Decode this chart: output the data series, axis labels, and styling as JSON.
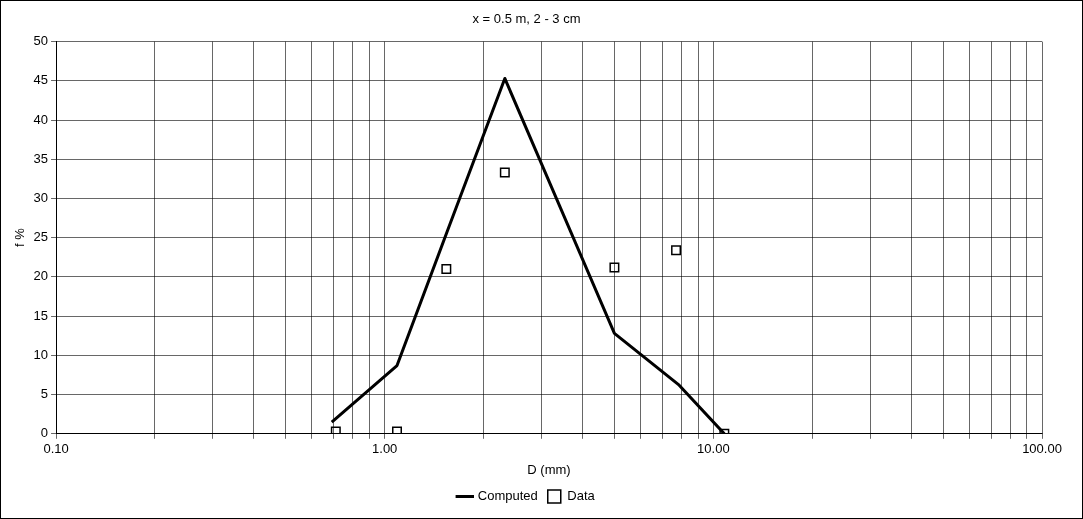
{
  "chart_data": {
    "type": "line",
    "title": "x = 0.5 m, 2 - 3 cm",
    "xlabel": "D (mm)",
    "ylabel": "f %",
    "log": "x",
    "grid": true,
    "legend": "bottom",
    "xlim": [
      0.1,
      100
    ],
    "xticks": [
      {
        "value": 0.1,
        "label": "0.10"
      },
      {
        "value": 0.2,
        "label": null
      },
      {
        "value": 0.3,
        "label": null
      },
      {
        "value": 0.4,
        "label": null
      },
      {
        "value": 0.5,
        "label": null
      },
      {
        "value": 0.6,
        "label": null
      },
      {
        "value": 0.7,
        "label": null
      },
      {
        "value": 0.8,
        "label": null
      },
      {
        "value": 0.9,
        "label": null
      },
      {
        "value": 1,
        "label": "1.00"
      },
      {
        "value": 2,
        "label": null
      },
      {
        "value": 3,
        "label": null
      },
      {
        "value": 4,
        "label": null
      },
      {
        "value": 5,
        "label": null
      },
      {
        "value": 6,
        "label": null
      },
      {
        "value": 7,
        "label": null
      },
      {
        "value": 8,
        "label": null
      },
      {
        "value": 9,
        "label": null
      },
      {
        "value": 10,
        "label": "10.00"
      },
      {
        "value": 20,
        "label": null
      },
      {
        "value": 30,
        "label": null
      },
      {
        "value": 40,
        "label": null
      },
      {
        "value": 50,
        "label": null
      },
      {
        "value": 60,
        "label": null
      },
      {
        "value": 70,
        "label": null
      },
      {
        "value": 80,
        "label": null
      },
      {
        "value": 90,
        "label": null
      },
      {
        "value": 100,
        "label": "100.00"
      }
    ],
    "ylim": [
      0,
      50
    ],
    "yticks": [
      0,
      5,
      10,
      15,
      20,
      25,
      30,
      35,
      40,
      45,
      50
    ],
    "series": [
      {
        "name": "Computed",
        "marker": "none",
        "line_style": "solid",
        "color": "#000000",
        "x": [
          0.69,
          1.09,
          1.54,
          2.32,
          5.0,
          7.87,
          10.8
        ],
        "values": [
          1.5,
          8.7,
          25.5,
          45.3,
          12.8,
          6.2,
          0
        ]
      },
      {
        "name": "Data",
        "type": "scatter",
        "marker": "square",
        "color": "#000000",
        "x": [
          0.71,
          1.09,
          1.54,
          2.32,
          5.0,
          7.7,
          10.8
        ],
        "values": [
          0.3,
          0.3,
          21,
          33.3,
          21.2,
          23.4,
          0
        ]
      }
    ]
  }
}
